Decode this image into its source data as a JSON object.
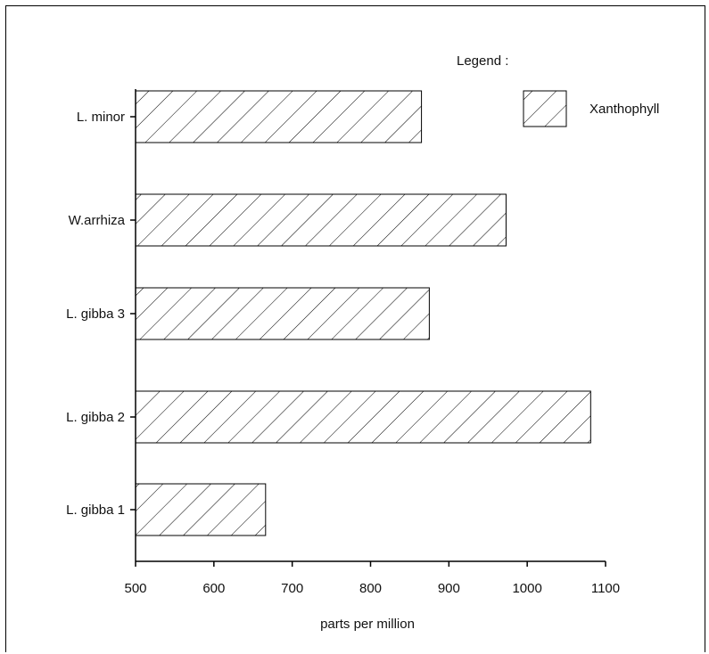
{
  "chart_data": {
    "type": "bar",
    "orientation": "horizontal",
    "categories": [
      "L. minor",
      "W.arrhiza",
      "L. gibba 3",
      "L. gibba 2",
      "L. gibba 1"
    ],
    "series": [
      {
        "name": "Xanthophyll",
        "values": [
          865,
          973,
          875,
          1081,
          666
        ]
      }
    ],
    "xlabel": "parts per million",
    "ylabel": "",
    "xlim": [
      500,
      1100
    ],
    "xticks": [
      "500",
      "600",
      "700",
      "800",
      "900",
      "1000",
      "1100"
    ],
    "grid": false,
    "legend": {
      "title": "Legend :",
      "position": "top-right"
    },
    "fill_pattern": "diagonal-hatch",
    "colors": {
      "bar_fill": "#ffffff",
      "stroke": "#000000"
    }
  }
}
